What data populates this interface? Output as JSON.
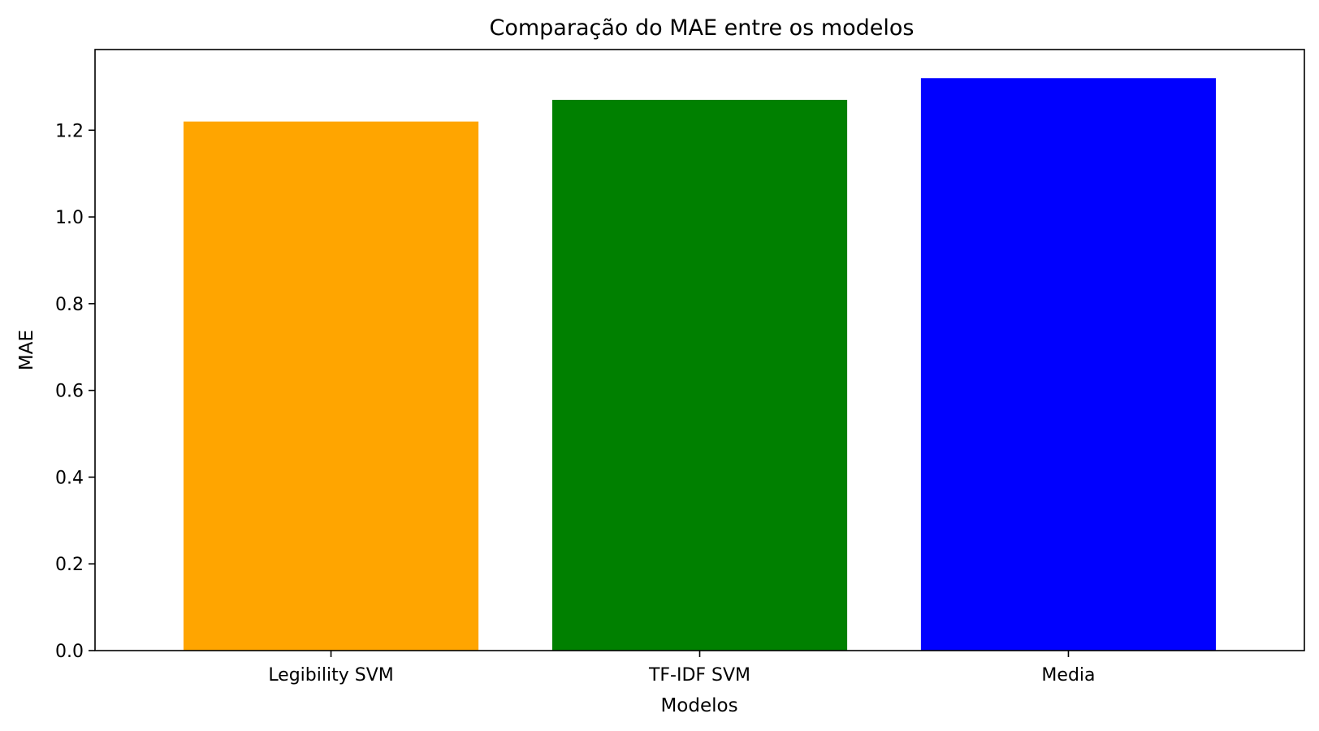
{
  "chart_data": {
    "type": "bar",
    "title": "Comparação do MAE entre os modelos",
    "xlabel": "Modelos",
    "ylabel": "MAE",
    "categories": [
      "Legibility SVM",
      "TF-IDF SVM",
      "Media"
    ],
    "values": [
      1.22,
      1.27,
      1.32
    ],
    "colors": [
      "#ffa500",
      "#008000",
      "#0000ff"
    ],
    "ylim": [
      0,
      1.386
    ],
    "yticks": [
      0.0,
      0.2,
      0.4,
      0.6,
      0.8,
      1.0,
      1.2
    ],
    "ytick_labels": [
      "0.0",
      "0.2",
      "0.4",
      "0.6",
      "0.8",
      "1.0",
      "1.2"
    ],
    "grid": false,
    "legend": "none"
  }
}
